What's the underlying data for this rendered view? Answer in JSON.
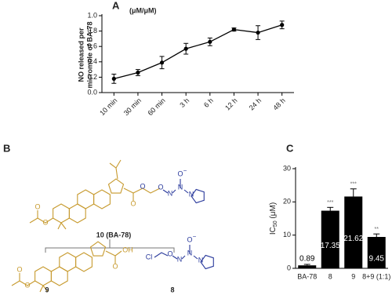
{
  "chart_data": [
    {
      "type": "line",
      "panel_label": "A",
      "title": "(μM/μM)",
      "y_label": [
        "NO released per",
        "micromole of BA-78"
      ],
      "categories": [
        "10 min",
        "30 min",
        "60 min",
        "3 h",
        "6 h",
        "12 h",
        "24 h",
        "48 h"
      ],
      "series": [
        {
          "color": "#000000",
          "values": [
            0.18,
            0.26,
            0.39,
            0.57,
            0.66,
            0.82,
            0.78,
            0.88
          ],
          "errors": [
            0.06,
            0.04,
            0.08,
            0.07,
            0.05,
            0.02,
            0.09,
            0.05
          ]
        }
      ],
      "ylim": [
        0,
        1.0
      ],
      "yticks": [
        {
          "value": 0,
          "label": "0.0"
        },
        0.2,
        0.4,
        0.6,
        0.8,
        {
          "value": 1.0,
          "label": "1.0"
        }
      ]
    },
    {
      "type": "bar",
      "panel_label": "C",
      "y_label": [
        "IC",
        "50",
        " (μM)"
      ],
      "categories": [
        "BA-78",
        "8",
        "9",
        "8+9 (1:1)"
      ],
      "values": [
        0.89,
        17.35,
        21.62,
        9.45
      ],
      "errors": [
        0.3,
        1.0,
        2.3,
        0.9
      ],
      "significance": [
        null,
        "***",
        "***",
        "**"
      ],
      "color": "#000000",
      "ylim": [
        0,
        30
      ],
      "yticks": [
        0,
        10,
        20,
        30
      ]
    }
  ],
  "structures": {
    "panel_label": "B",
    "compounds": [
      {
        "label": "10 (BA-78)",
        "atoms": [
          "O",
          "O",
          "O",
          "O",
          "O",
          "N",
          "N",
          "O",
          "−",
          "N"
        ]
      },
      {
        "label": "9",
        "atoms": [
          "O",
          "O",
          "O",
          "OH"
        ]
      },
      {
        "label": "8",
        "atoms": [
          "Cl",
          "O",
          "N",
          "N",
          "O",
          "−",
          "N"
        ]
      }
    ]
  }
}
